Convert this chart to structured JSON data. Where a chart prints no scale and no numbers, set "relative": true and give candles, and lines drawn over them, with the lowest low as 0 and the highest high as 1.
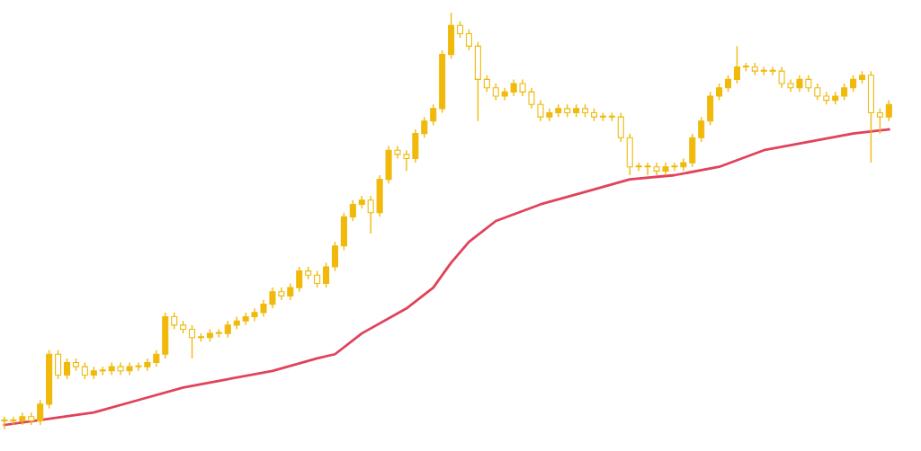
{
  "chart_data": {
    "type": "candlestick",
    "relative": true,
    "color": "#f0b90b",
    "categories": [
      null,
      null,
      null,
      null,
      null,
      null,
      null,
      null,
      null,
      null,
      null,
      null,
      null,
      null,
      null,
      null,
      null,
      null,
      null,
      null,
      null,
      null,
      null,
      null,
      null,
      null,
      null,
      null,
      null,
      null,
      null,
      null,
      null,
      null,
      null,
      null,
      null,
      null,
      null,
      null,
      null,
      null,
      null,
      null,
      null,
      null,
      null,
      null,
      null,
      null,
      null,
      null,
      null,
      null,
      null,
      null,
      null,
      null,
      null,
      null,
      null,
      null,
      null,
      null,
      null,
      null,
      null,
      null,
      null,
      null,
      null,
      null,
      null,
      null,
      null,
      null,
      null,
      null,
      null,
      null,
      null,
      null,
      null,
      null,
      null,
      null,
      null,
      null,
      null,
      null,
      null,
      null,
      null,
      null,
      null,
      null,
      null,
      null,
      null,
      null
    ],
    "ohlc": [
      [
        0.02,
        0.03,
        0.0,
        0.02
      ],
      [
        0.02,
        0.03,
        0.01,
        0.02
      ],
      [
        0.02,
        0.04,
        0.01,
        0.03
      ],
      [
        0.03,
        0.04,
        0.01,
        0.02
      ],
      [
        0.02,
        0.07,
        0.01,
        0.06
      ],
      [
        0.06,
        0.19,
        0.05,
        0.18
      ],
      [
        0.18,
        0.19,
        0.12,
        0.13
      ],
      [
        0.13,
        0.17,
        0.12,
        0.16
      ],
      [
        0.16,
        0.17,
        0.14,
        0.15
      ],
      [
        0.15,
        0.16,
        0.12,
        0.13
      ],
      [
        0.13,
        0.15,
        0.12,
        0.14
      ],
      [
        0.14,
        0.15,
        0.13,
        0.14
      ],
      [
        0.14,
        0.16,
        0.13,
        0.15
      ],
      [
        0.15,
        0.16,
        0.13,
        0.14
      ],
      [
        0.14,
        0.16,
        0.13,
        0.15
      ],
      [
        0.15,
        0.16,
        0.14,
        0.15
      ],
      [
        0.15,
        0.17,
        0.14,
        0.16
      ],
      [
        0.16,
        0.19,
        0.15,
        0.18
      ],
      [
        0.18,
        0.28,
        0.17,
        0.27
      ],
      [
        0.27,
        0.28,
        0.24,
        0.25
      ],
      [
        0.25,
        0.26,
        0.23,
        0.24
      ],
      [
        0.24,
        0.25,
        0.17,
        0.22
      ],
      [
        0.22,
        0.23,
        0.21,
        0.22
      ],
      [
        0.22,
        0.24,
        0.21,
        0.23
      ],
      [
        0.23,
        0.24,
        0.22,
        0.23
      ],
      [
        0.23,
        0.26,
        0.22,
        0.25
      ],
      [
        0.25,
        0.27,
        0.24,
        0.26
      ],
      [
        0.26,
        0.28,
        0.25,
        0.27
      ],
      [
        0.27,
        0.29,
        0.26,
        0.28
      ],
      [
        0.28,
        0.31,
        0.27,
        0.3
      ],
      [
        0.3,
        0.34,
        0.29,
        0.33
      ],
      [
        0.33,
        0.34,
        0.31,
        0.32
      ],
      [
        0.32,
        0.35,
        0.31,
        0.34
      ],
      [
        0.34,
        0.39,
        0.33,
        0.38
      ],
      [
        0.38,
        0.39,
        0.36,
        0.37
      ],
      [
        0.37,
        0.38,
        0.34,
        0.35
      ],
      [
        0.35,
        0.4,
        0.34,
        0.39
      ],
      [
        0.39,
        0.45,
        0.38,
        0.44
      ],
      [
        0.44,
        0.52,
        0.43,
        0.51
      ],
      [
        0.51,
        0.55,
        0.5,
        0.54
      ],
      [
        0.54,
        0.56,
        0.53,
        0.55
      ],
      [
        0.55,
        0.56,
        0.47,
        0.52
      ],
      [
        0.52,
        0.61,
        0.51,
        0.6
      ],
      [
        0.6,
        0.68,
        0.59,
        0.67
      ],
      [
        0.67,
        0.68,
        0.65,
        0.66
      ],
      [
        0.66,
        0.67,
        0.62,
        0.65
      ],
      [
        0.65,
        0.72,
        0.64,
        0.71
      ],
      [
        0.71,
        0.75,
        0.7,
        0.74
      ],
      [
        0.74,
        0.78,
        0.73,
        0.77
      ],
      [
        0.77,
        0.91,
        0.76,
        0.9
      ],
      [
        0.9,
        1.0,
        0.89,
        0.97
      ],
      [
        0.97,
        0.98,
        0.94,
        0.95
      ],
      [
        0.95,
        0.96,
        0.91,
        0.92
      ],
      [
        0.92,
        0.93,
        0.74,
        0.84
      ],
      [
        0.84,
        0.85,
        0.81,
        0.82
      ],
      [
        0.82,
        0.83,
        0.79,
        0.8
      ],
      [
        0.8,
        0.82,
        0.79,
        0.81
      ],
      [
        0.81,
        0.84,
        0.8,
        0.83
      ],
      [
        0.83,
        0.84,
        0.8,
        0.81
      ],
      [
        0.81,
        0.82,
        0.77,
        0.78
      ],
      [
        0.78,
        0.79,
        0.74,
        0.75
      ],
      [
        0.75,
        0.77,
        0.74,
        0.76
      ],
      [
        0.76,
        0.78,
        0.75,
        0.77
      ],
      [
        0.77,
        0.78,
        0.75,
        0.76
      ],
      [
        0.76,
        0.78,
        0.75,
        0.77
      ],
      [
        0.77,
        0.78,
        0.75,
        0.76
      ],
      [
        0.76,
        0.77,
        0.74,
        0.75
      ],
      [
        0.75,
        0.76,
        0.74,
        0.75
      ],
      [
        0.75,
        0.76,
        0.74,
        0.75
      ],
      [
        0.75,
        0.76,
        0.69,
        0.7
      ],
      [
        0.7,
        0.71,
        0.61,
        0.63
      ],
      [
        0.63,
        0.64,
        0.62,
        0.63
      ],
      [
        0.63,
        0.64,
        0.61,
        0.63
      ],
      [
        0.63,
        0.64,
        0.61,
        0.62
      ],
      [
        0.62,
        0.64,
        0.61,
        0.63
      ],
      [
        0.63,
        0.64,
        0.62,
        0.63
      ],
      [
        0.63,
        0.65,
        0.62,
        0.64
      ],
      [
        0.64,
        0.71,
        0.63,
        0.7
      ],
      [
        0.7,
        0.75,
        0.69,
        0.74
      ],
      [
        0.74,
        0.81,
        0.73,
        0.8
      ],
      [
        0.8,
        0.83,
        0.79,
        0.82
      ],
      [
        0.82,
        0.85,
        0.81,
        0.84
      ],
      [
        0.84,
        0.92,
        0.83,
        0.87
      ],
      [
        0.87,
        0.88,
        0.86,
        0.87
      ],
      [
        0.87,
        0.88,
        0.85,
        0.86
      ],
      [
        0.86,
        0.87,
        0.85,
        0.86
      ],
      [
        0.86,
        0.87,
        0.85,
        0.86
      ],
      [
        0.86,
        0.87,
        0.82,
        0.83
      ],
      [
        0.83,
        0.84,
        0.81,
        0.82
      ],
      [
        0.82,
        0.85,
        0.81,
        0.84
      ],
      [
        0.84,
        0.85,
        0.81,
        0.82
      ],
      [
        0.82,
        0.83,
        0.79,
        0.8
      ],
      [
        0.8,
        0.81,
        0.78,
        0.79
      ],
      [
        0.79,
        0.81,
        0.78,
        0.8
      ],
      [
        0.8,
        0.83,
        0.79,
        0.82
      ],
      [
        0.82,
        0.85,
        0.81,
        0.84
      ],
      [
        0.84,
        0.86,
        0.83,
        0.85
      ],
      [
        0.85,
        0.86,
        0.64,
        0.76
      ],
      [
        0.76,
        0.77,
        0.71,
        0.75
      ],
      [
        0.75,
        0.79,
        0.74,
        0.78
      ]
    ],
    "series": [
      {
        "type": "line",
        "color": "#e0435a",
        "values": [
          0.01,
          null,
          null,
          null,
          null,
          0.025,
          null,
          null,
          null,
          null,
          0.04,
          null,
          null,
          null,
          null,
          0.07,
          null,
          null,
          null,
          null,
          0.1,
          null,
          null,
          null,
          null,
          0.12,
          null,
          null,
          null,
          null,
          0.14,
          null,
          null,
          null,
          null,
          0.17,
          null,
          0.18,
          null,
          null,
          0.23,
          null,
          null,
          null,
          null,
          0.29,
          null,
          null,
          0.34,
          null,
          0.4,
          null,
          0.45,
          null,
          null,
          0.5,
          null,
          null,
          null,
          null,
          0.54,
          null,
          null,
          null,
          null,
          0.57,
          null,
          null,
          null,
          null,
          0.6,
          null,
          null,
          null,
          null,
          0.61,
          null,
          null,
          null,
          null,
          0.63,
          null,
          null,
          null,
          null,
          0.67,
          null,
          null,
          null,
          null,
          0.69,
          null,
          null,
          null,
          null,
          0.71,
          null,
          null,
          null,
          0.72
        ]
      }
    ]
  }
}
